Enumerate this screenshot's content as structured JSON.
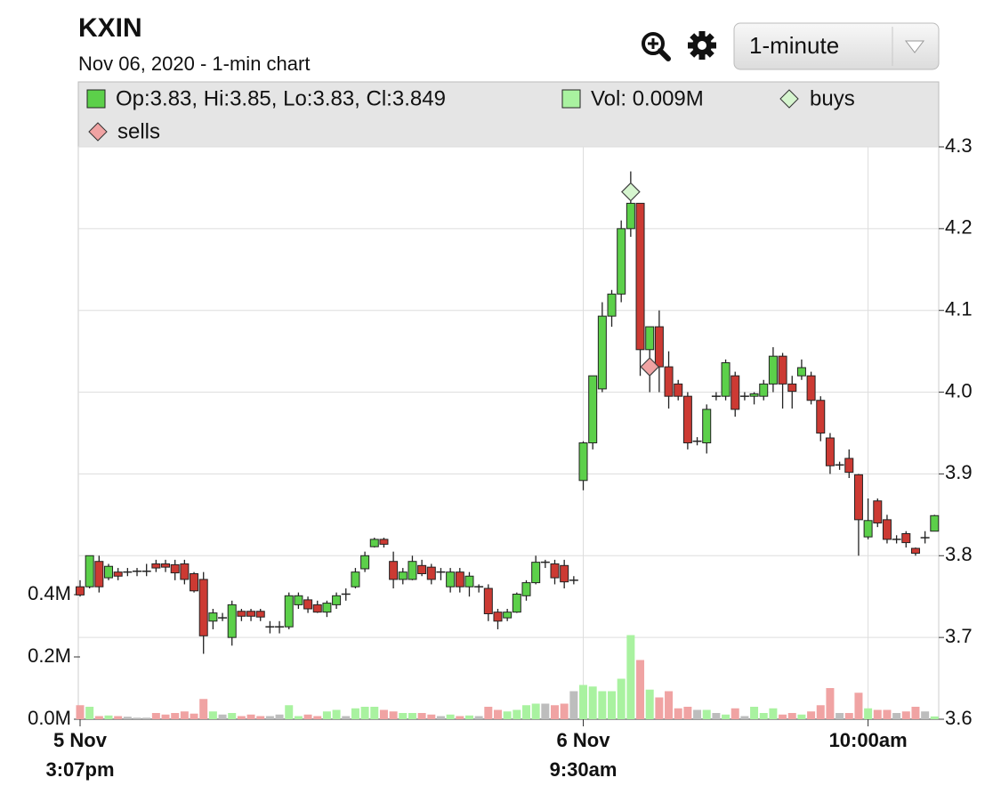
{
  "header": {
    "title": "KXIN",
    "subtitle": "Nov 06, 2020 - 1-min chart",
    "interval": "1-minute"
  },
  "chart_data": {
    "type": "candlestick",
    "ohlc_label": "Op:3.83, Hi:3.85, Lo:3.83, Cl:3.849",
    "volume_label": "Vol: 0.009M",
    "categories": [
      [
        "5 Nov",
        "3:07pm"
      ],
      null,
      null,
      null,
      null,
      null,
      null,
      null,
      null,
      null,
      null,
      null,
      null,
      null,
      null,
      null,
      null,
      null,
      null,
      null,
      null,
      null,
      null,
      null,
      null,
      null,
      null,
      null,
      null,
      null,
      null,
      null,
      null,
      null,
      null,
      null,
      null,
      null,
      null,
      null,
      null,
      null,
      null,
      null,
      null,
      null,
      null,
      null,
      null,
      null,
      null,
      null,
      null,
      [
        "6 Nov",
        "9:30am"
      ],
      null,
      null,
      null,
      null,
      null,
      null,
      null,
      null,
      null,
      null,
      null,
      null,
      null,
      null,
      null,
      null,
      null,
      null,
      null,
      null,
      null,
      null,
      null,
      null,
      null,
      null,
      null,
      null,
      null,
      [
        "10:00am"
      ],
      null,
      null,
      null,
      null,
      null,
      null,
      null
    ],
    "open": [
      3.762,
      3.762,
      3.793,
      3.773,
      3.78,
      3.78,
      3.781,
      3.781,
      3.79,
      3.79,
      3.789,
      3.79,
      3.778,
      3.771,
      3.72,
      3.724,
      3.7,
      3.732,
      3.732,
      3.732,
      3.713,
      3.713,
      3.713,
      3.74,
      3.746,
      3.74,
      3.731,
      3.74,
      3.753,
      3.762,
      3.784,
      3.811,
      3.82,
      3.793,
      3.771,
      3.771,
      3.788,
      3.786,
      3.78,
      3.762,
      3.78,
      3.762,
      3.762,
      3.76,
      3.731,
      3.724,
      3.731,
      3.751,
      3.767,
      3.792,
      3.79,
      3.788,
      3.77,
      3.892,
      3.938,
      4.004,
      4.093,
      4.12,
      4.2,
      4.231,
      4.052,
      4.08,
      4.031,
      4.01,
      3.995,
      3.94,
      3.938,
      3.995,
      3.995,
      4.02,
      3.995,
      3.995,
      3.995,
      4.01,
      4.044,
      4.01,
      4.02,
      4.02,
      3.99,
      3.944,
      3.911,
      3.919,
      3.899,
      3.823,
      3.867,
      3.844,
      3.82,
      3.827,
      3.809,
      3.822,
      3.83
    ],
    "high": [
      3.77,
      3.8,
      3.8,
      3.79,
      3.785,
      3.785,
      3.785,
      3.79,
      3.795,
      3.795,
      3.795,
      3.795,
      3.78,
      3.78,
      3.735,
      3.73,
      3.745,
      3.735,
      3.735,
      3.735,
      3.72,
      3.72,
      3.755,
      3.755,
      3.75,
      3.745,
      3.745,
      3.755,
      3.76,
      3.785,
      3.805,
      3.822,
      3.822,
      3.805,
      3.785,
      3.8,
      3.795,
      3.79,
      3.785,
      3.785,
      3.785,
      3.78,
      3.765,
      3.765,
      3.735,
      3.735,
      3.755,
      3.77,
      3.8,
      3.795,
      3.795,
      3.795,
      3.775,
      3.94,
      4.02,
      4.11,
      4.125,
      4.21,
      4.27,
      4.231,
      4.08,
      4.1,
      4.05,
      4.015,
      4.0,
      3.945,
      3.985,
      4.0,
      4.04,
      4.025,
      4.0,
      4.0,
      4.015,
      4.055,
      4.048,
      4.02,
      4.04,
      4.025,
      3.995,
      3.95,
      3.915,
      3.93,
      3.9,
      3.87,
      3.87,
      3.85,
      3.825,
      3.83,
      3.81,
      3.83,
      3.85
    ],
    "low": [
      3.75,
      3.76,
      3.755,
      3.77,
      3.77,
      3.775,
      3.775,
      3.775,
      3.78,
      3.78,
      3.77,
      3.765,
      3.755,
      3.68,
      3.71,
      3.72,
      3.69,
      3.72,
      3.72,
      3.72,
      3.705,
      3.705,
      3.71,
      3.735,
      3.73,
      3.73,
      3.725,
      3.735,
      3.745,
      3.76,
      3.78,
      3.81,
      3.81,
      3.76,
      3.765,
      3.77,
      3.775,
      3.765,
      3.77,
      3.755,
      3.755,
      3.75,
      3.755,
      3.72,
      3.71,
      3.72,
      3.73,
      3.745,
      3.765,
      3.785,
      3.765,
      3.76,
      3.765,
      3.88,
      3.93,
      4.0,
      4.08,
      4.11,
      4.19,
      4.02,
      4.0,
      4.0,
      3.98,
      3.99,
      3.93,
      3.935,
      3.925,
      3.99,
      3.99,
      3.97,
      3.99,
      3.985,
      3.99,
      4.0,
      3.98,
      3.98,
      4.015,
      3.985,
      3.94,
      3.9,
      3.905,
      3.895,
      3.8,
      3.82,
      3.835,
      3.815,
      3.815,
      3.81,
      3.8,
      3.815,
      3.83
    ],
    "close": [
      3.752,
      3.8,
      3.762,
      3.787,
      3.775,
      3.78,
      3.781,
      3.781,
      3.785,
      3.786,
      3.779,
      3.771,
      3.757,
      3.702,
      3.73,
      3.724,
      3.74,
      3.726,
      3.726,
      3.725,
      3.713,
      3.713,
      3.751,
      3.751,
      3.735,
      3.731,
      3.742,
      3.751,
      3.753,
      3.78,
      3.8,
      3.82,
      3.814,
      3.771,
      3.78,
      3.793,
      3.778,
      3.771,
      3.78,
      3.78,
      3.762,
      3.775,
      3.762,
      3.729,
      3.72,
      3.731,
      3.753,
      3.767,
      3.792,
      3.792,
      3.773,
      3.768,
      3.77,
      3.938,
      4.02,
      4.093,
      4.12,
      4.2,
      4.231,
      4.052,
      4.08,
      4.031,
      3.995,
      3.995,
      3.938,
      3.94,
      3.979,
      3.995,
      4.036,
      3.979,
      3.995,
      3.998,
      4.01,
      4.044,
      4.01,
      4.001,
      4.03,
      3.99,
      3.95,
      3.91,
      3.911,
      3.902,
      3.844,
      3.843,
      3.84,
      3.82,
      3.82,
      3.816,
      3.803,
      3.822,
      3.849
    ],
    "volume": [
      0.045,
      0.04,
      0.01,
      0.012,
      0.01,
      0.008,
      0.005,
      0.005,
      0.02,
      0.015,
      0.02,
      0.025,
      0.018,
      0.065,
      0.025,
      0.015,
      0.02,
      0.01,
      0.015,
      0.01,
      0.01,
      0.015,
      0.045,
      0.01,
      0.015,
      0.01,
      0.025,
      0.03,
      0.01,
      0.035,
      0.04,
      0.04,
      0.03,
      0.025,
      0.02,
      0.02,
      0.02,
      0.015,
      0.01,
      0.015,
      0.01,
      0.012,
      0.01,
      0.04,
      0.03,
      0.025,
      0.03,
      0.045,
      0.05,
      0.05,
      0.045,
      0.05,
      0.09,
      0.11,
      0.105,
      0.09,
      0.09,
      0.13,
      0.27,
      0.19,
      0.095,
      0.07,
      0.09,
      0.035,
      0.04,
      0.03,
      0.03,
      0.02,
      0.015,
      0.035,
      0.01,
      0.04,
      0.02,
      0.035,
      0.015,
      0.02,
      0.015,
      0.025,
      0.045,
      0.1,
      0.02,
      0.02,
      0.085,
      0.035,
      0.03,
      0.03,
      0.02,
      0.025,
      0.04,
      0.025,
      0.009
    ],
    "buys": {
      "name": "buys",
      "color": "#d6f5cf",
      "values": [
        null,
        null,
        null,
        null,
        null,
        null,
        null,
        null,
        null,
        null,
        null,
        null,
        null,
        null,
        null,
        null,
        null,
        null,
        null,
        null,
        null,
        null,
        null,
        null,
        null,
        null,
        null,
        null,
        null,
        null,
        null,
        null,
        null,
        null,
        null,
        null,
        null,
        null,
        null,
        null,
        null,
        null,
        null,
        null,
        null,
        null,
        null,
        null,
        null,
        null,
        null,
        null,
        null,
        null,
        null,
        null,
        null,
        null,
        4.245,
        null,
        null,
        null,
        null,
        null,
        null,
        null,
        null,
        null,
        null,
        null,
        null,
        null,
        null,
        null,
        null,
        null,
        null,
        null,
        null,
        null,
        null,
        null,
        null,
        null,
        null,
        null,
        null,
        null,
        null,
        null,
        null
      ]
    },
    "sells": {
      "name": "sells",
      "color": "#f0a3a3",
      "values": [
        null,
        null,
        null,
        null,
        null,
        null,
        null,
        null,
        null,
        null,
        null,
        null,
        null,
        null,
        null,
        null,
        null,
        null,
        null,
        null,
        null,
        null,
        null,
        null,
        null,
        null,
        null,
        null,
        null,
        null,
        null,
        null,
        null,
        null,
        null,
        null,
        null,
        null,
        null,
        null,
        null,
        null,
        null,
        null,
        null,
        null,
        null,
        null,
        null,
        null,
        null,
        null,
        null,
        null,
        null,
        null,
        null,
        null,
        null,
        null,
        4.031,
        null,
        null,
        null,
        null,
        null,
        null,
        null,
        null,
        null,
        null,
        null,
        null,
        null,
        null,
        null,
        null,
        null,
        null,
        null,
        null,
        null,
        null,
        null,
        null,
        null,
        null,
        null,
        null,
        null,
        null,
        null
      ]
    },
    "up_color": "#5cd04a",
    "down_color": "#cc3a33",
    "volume_up_color": "#a9f2a0",
    "volume_down_color": "#f0a3a3",
    "volume_flat_color": "#bdbdbd",
    "ylim": [
      3.6,
      4.3
    ],
    "yticks": [
      3.6,
      3.7,
      3.8,
      3.9,
      {
        "value": 4,
        "label": "4.0"
      },
      4.1,
      4.2,
      4.3
    ],
    "y2lim": [
      0,
      1.837
    ],
    "y2ticks": [
      {
        "value": 0,
        "label": "0.0M"
      },
      {
        "value": 0.2,
        "label": "0.2M"
      },
      {
        "value": 0.4,
        "label": "0.4M"
      }
    ],
    "grid": true
  }
}
